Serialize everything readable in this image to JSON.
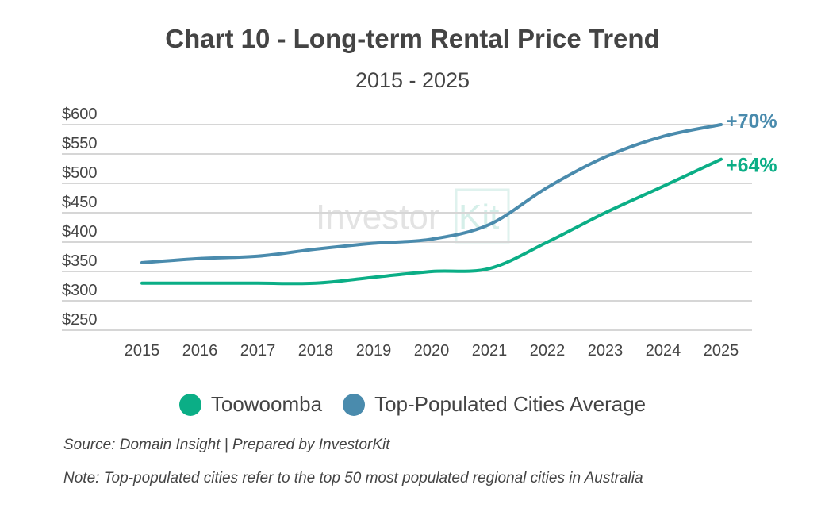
{
  "chart_data": {
    "type": "line",
    "title": "Chart 10 - Long-term Rental Price Trend",
    "subtitle": "2015 - 2025",
    "x": [
      "2015",
      "2016",
      "2017",
      "2018",
      "2019",
      "2020",
      "2021",
      "2022",
      "2023",
      "2024",
      "2025"
    ],
    "ylim": [
      250,
      600
    ],
    "yticks": [
      600,
      550,
      500,
      450,
      400,
      350,
      300,
      250
    ],
    "ytick_labels": [
      "$600",
      "$550",
      "$500",
      "$450",
      "$400",
      "$350",
      "$300",
      "$250"
    ],
    "grid": true,
    "legend_position": "bottom",
    "series": [
      {
        "name": "Toowoomba",
        "color": "#0bae86",
        "values": [
          330,
          330,
          330,
          330,
          340,
          350,
          355,
          400,
          450,
          495,
          541
        ],
        "end_label": "+64%"
      },
      {
        "name": "Top-Populated Cities Average",
        "color": "#4a8bad",
        "values": [
          365,
          372,
          376,
          388,
          398,
          405,
          430,
          493,
          545,
          580,
          600
        ],
        "end_label": "+70%"
      }
    ]
  },
  "watermark": "InvestorKit",
  "footer": {
    "source": "Source: Domain Insight | Prepared by InvestorKit",
    "note": "Note: Top-populated cities refer to the top 50 most populated regional cities in Australia"
  }
}
